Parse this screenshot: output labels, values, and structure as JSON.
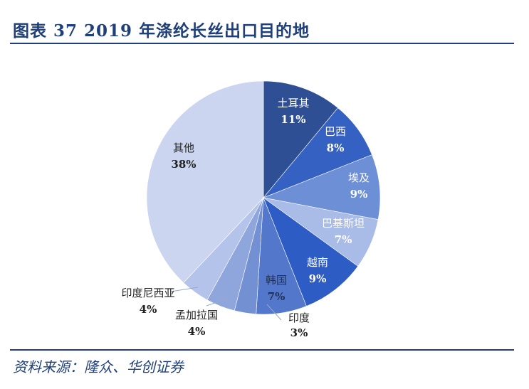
{
  "figure": {
    "title": "图表 37   2019 年涤纶长丝出口目的地",
    "source": "资料来源：隆众、华创证券"
  },
  "chart_data": {
    "type": "pie",
    "title": "2019 年涤纶长丝出口目的地",
    "start_angle_deg": 0,
    "direction": "clockwise",
    "slices": [
      {
        "name": "土耳其",
        "label": "11%",
        "value": 11,
        "color": "#2f4f94",
        "text_color": "#ffffff",
        "label_mode": "inside"
      },
      {
        "name": "巴西",
        "label": "8%",
        "value": 8,
        "color": "#3562c2",
        "text_color": "#ffffff",
        "label_mode": "inside"
      },
      {
        "name": "埃及",
        "label": "9%",
        "value": 9,
        "color": "#6d8fd6",
        "text_color": "#ffffff",
        "label_mode": "inside"
      },
      {
        "name": "巴基斯坦",
        "label": "7%",
        "value": 7,
        "color": "#a9bbe7",
        "text_color": "#ffffff",
        "label_mode": "inside"
      },
      {
        "name": "越南",
        "label": "9%",
        "value": 9,
        "color": "#2d5cc4",
        "text_color": "#ffffff",
        "label_mode": "inside"
      },
      {
        "name": "韩国",
        "label": "7%",
        "value": 7,
        "color": "#5378cb",
        "text_color": "#1f2f55",
        "label_mode": "inside"
      },
      {
        "name": "印度",
        "label": "3%",
        "value": 3,
        "color": "#7390d2",
        "text_color": "#222222",
        "label_mode": "callout"
      },
      {
        "name": "孟加拉国",
        "label": "4%",
        "value": 4,
        "color": "#8fa6dd",
        "text_color": "#222222",
        "label_mode": "callout"
      },
      {
        "name": "印度尼西亚",
        "label": "4%",
        "value": 4,
        "color": "#b4c3ea",
        "text_color": "#222222",
        "label_mode": "callout"
      },
      {
        "name": "其他",
        "label": "38%",
        "value": 38,
        "color": "#ccd5ef",
        "text_color": "#222222",
        "label_mode": "inside"
      }
    ]
  }
}
